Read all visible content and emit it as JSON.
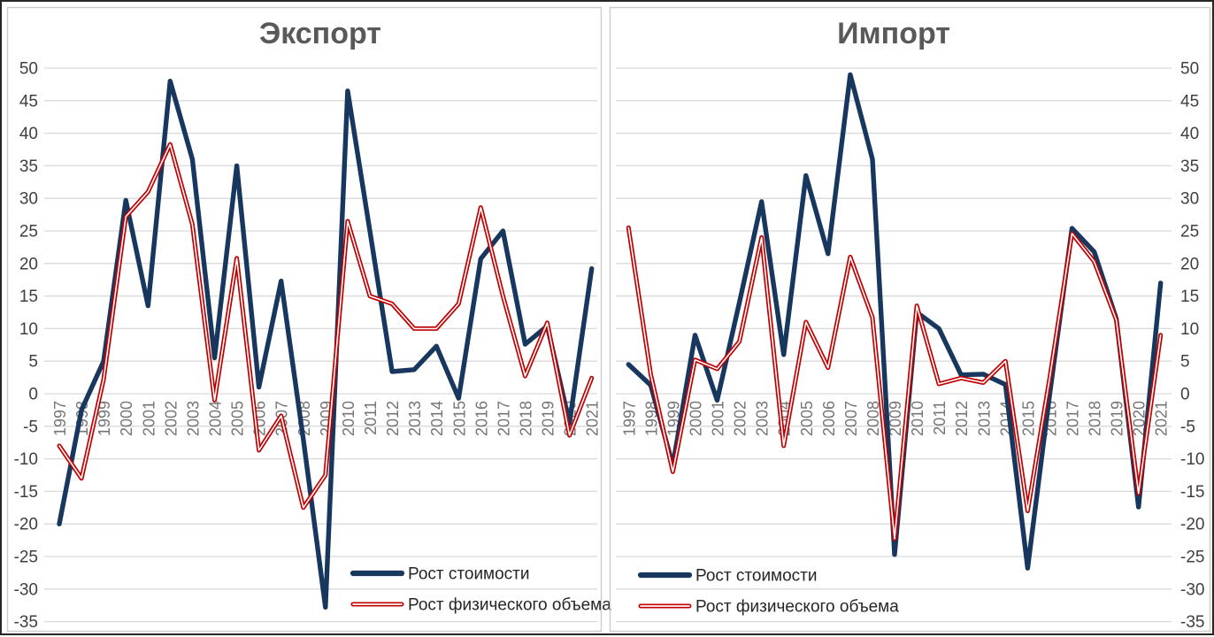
{
  "chart_data": [
    {
      "type": "line",
      "title": "Экспорт",
      "y_axis_side": "left",
      "x": [
        1997,
        1998,
        1999,
        2000,
        2001,
        2002,
        2003,
        2004,
        2005,
        2006,
        2007,
        2008,
        2009,
        2010,
        2011,
        2012,
        2013,
        2014,
        2015,
        2016,
        2017,
        2018,
        2019,
        2020,
        2021
      ],
      "series": [
        {
          "name": "Рост стоимости",
          "color": "#17375e",
          "values": [
            -20,
            -2.5,
            5,
            29.7,
            13.5,
            48,
            36,
            5.5,
            35,
            1,
            17.3,
            -7,
            -32.8,
            46.5,
            25,
            3.4,
            3.7,
            7.3,
            -0.7,
            20.7,
            25,
            7.6,
            10.4,
            -4.5,
            19.2
          ]
        },
        {
          "name": "Рост физического объема",
          "color": "#c00000",
          "values": [
            -8,
            -13,
            2.2,
            27.2,
            31,
            38.3,
            26,
            -1,
            20.8,
            -8.7,
            -3.4,
            -17.5,
            -12.5,
            26.5,
            15,
            13.8,
            10,
            10,
            13.8,
            28.6,
            15,
            2.7,
            10.9,
            -6.4,
            2.4
          ]
        }
      ],
      "ylim": [
        -35,
        50
      ],
      "grid": true,
      "legend_position": "bottom-right-inside"
    },
    {
      "type": "line",
      "title": "Импорт",
      "y_axis_side": "right",
      "x": [
        1997,
        1998,
        1999,
        2000,
        2001,
        2002,
        2003,
        2004,
        2005,
        2006,
        2007,
        2008,
        2009,
        2010,
        2011,
        2012,
        2013,
        2014,
        2015,
        2016,
        2017,
        2018,
        2019,
        2020,
        2021
      ],
      "series": [
        {
          "name": "Рост стоимости",
          "color": "#17375e",
          "values": [
            4.5,
            1.3,
            -11,
            9,
            -1,
            14,
            29.5,
            6,
            33.5,
            21.5,
            49,
            36,
            -24.7,
            12.5,
            10,
            2.9,
            3,
            1.4,
            -26.8,
            0,
            25.4,
            21.8,
            11.5,
            -17.4,
            17
          ]
        },
        {
          "name": "Рост физического объема",
          "color": "#c00000",
          "values": [
            25.5,
            3,
            -12,
            5.2,
            3.8,
            8,
            24,
            -8,
            11,
            4,
            21,
            11.7,
            -22.3,
            13.5,
            1.5,
            2.4,
            1.7,
            5,
            -18,
            2.5,
            24.6,
            20.3,
            11.3,
            -15.3,
            9
          ]
        }
      ],
      "ylim": [
        -35,
        50
      ],
      "grid": true,
      "legend_position": "bottom-left-inside"
    }
  ],
  "y_axis": {
    "min": -35,
    "max": 50,
    "step": 5,
    "tick_labels": [
      "50",
      "45",
      "40",
      "35",
      "30",
      "25",
      "20",
      "15",
      "10",
      "5",
      "0",
      "-5",
      "-10",
      "-15",
      "-20",
      "-25",
      "-30",
      "-35"
    ]
  },
  "colors": {
    "value_series": "#17375e",
    "volume_series": "#c00000",
    "volume_core": "#ffffff",
    "grid": "#d9d9d9",
    "panel_border": "#cccccc",
    "title": "#595959",
    "year_labels": "#757575",
    "tick_labels": "#3f3f3f",
    "legend_text": "#262626"
  }
}
